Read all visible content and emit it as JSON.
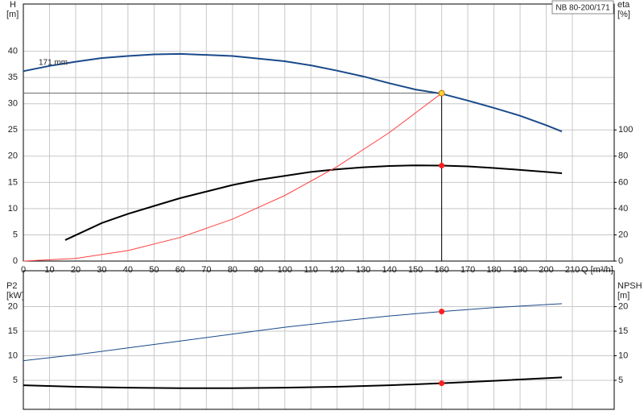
{
  "chart_data": [
    {
      "type": "line",
      "title": "NB 80-200/171",
      "ylabel": "H",
      "yunit": "[m]",
      "y2label": "eta",
      "y2unit": "[%]",
      "xlabel": "Q [m³/h]",
      "xlim": [
        0,
        226
      ],
      "xticks": [
        0,
        10,
        20,
        30,
        40,
        50,
        60,
        70,
        80,
        90,
        100,
        110,
        120,
        130,
        140,
        150,
        160,
        170,
        180,
        190,
        200,
        210
      ],
      "ylim": [
        0,
        49
      ],
      "yticks": [
        0,
        5,
        10,
        15,
        20,
        25,
        30,
        35,
        40
      ],
      "y2lim": [
        0,
        196
      ],
      "y2ticks": [
        0,
        20,
        40,
        60,
        80,
        100
      ],
      "grid": true,
      "series": [
        {
          "name": "171 mm",
          "color": "#1a4a8a",
          "x": [
            0,
            10,
            20,
            30,
            40,
            50,
            60,
            70,
            80,
            90,
            100,
            110,
            120,
            130,
            140,
            150,
            160,
            170,
            180,
            190,
            200,
            206
          ],
          "values": [
            36.2,
            37.2,
            38.0,
            38.7,
            39.1,
            39.4,
            39.5,
            39.3,
            39.1,
            38.6,
            38.1,
            37.3,
            36.3,
            35.2,
            33.9,
            32.7,
            31.9,
            30.6,
            29.2,
            27.7,
            25.9,
            24.7
          ]
        },
        {
          "color": "#000000",
          "axis": "y2",
          "x": [
            16,
            30,
            40,
            50,
            60,
            70,
            80,
            90,
            100,
            110,
            120,
            130,
            140,
            150,
            160,
            170,
            180,
            190,
            200,
            206
          ],
          "values": [
            16,
            29,
            36,
            42,
            48,
            53,
            58,
            62,
            65,
            68,
            70,
            71.5,
            72.5,
            73,
            72.8,
            72.2,
            71,
            69.5,
            68,
            67
          ]
        },
        {
          "color": "#ff4040",
          "x": [
            0,
            20,
            40,
            60,
            80,
            100,
            120,
            140,
            160
          ],
          "values": [
            0,
            0.5,
            2,
            4.5,
            8,
            12.5,
            18,
            24.5,
            32
          ]
        }
      ],
      "duty_point": {
        "q": 160,
        "h": 32,
        "eta": 72.8
      }
    },
    {
      "type": "line",
      "ylabel": "P2",
      "yunit": "[kW]",
      "y2label": "NPSH",
      "y2unit": "[m]",
      "xlim": [
        0,
        226
      ],
      "ylim": [
        -0.9,
        27.3
      ],
      "yticks": [
        5,
        10,
        15,
        20
      ],
      "y2lim": [
        -0.9,
        27.3
      ],
      "y2ticks": [
        5,
        10,
        15,
        20
      ],
      "grid": true,
      "series": [
        {
          "color": "#1a4a8a",
          "x": [
            0,
            20,
            40,
            60,
            80,
            100,
            120,
            140,
            160,
            180,
            206
          ],
          "values": [
            9,
            10.2,
            11.6,
            13,
            14.4,
            15.8,
            17.0,
            18.1,
            19.0,
            19.8,
            20.6
          ]
        },
        {
          "color": "#000000",
          "axis": "y2",
          "x": [
            0,
            20,
            40,
            60,
            80,
            100,
            120,
            140,
            160,
            180,
            206
          ],
          "values": [
            4,
            3.7,
            3.5,
            3.4,
            3.4,
            3.5,
            3.7,
            4.0,
            4.4,
            4.9,
            5.6
          ]
        }
      ],
      "duty_point": {
        "q": 160,
        "p2": 19,
        "npsh": 4.4
      }
    }
  ]
}
